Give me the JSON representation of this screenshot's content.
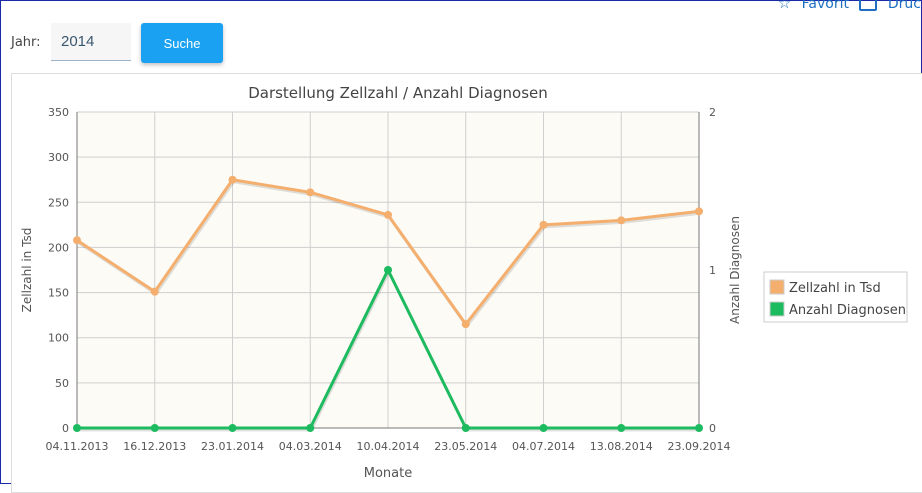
{
  "header": {
    "favorit_label": "Favorit",
    "druck_label": "Druc"
  },
  "filter": {
    "jahr_label": "Jahr:",
    "jahr_value": "2014",
    "suche_label": "Suche"
  },
  "colors": {
    "zellzahl": "#f4ae6d",
    "diagnosen": "#1dbb60",
    "plot_bg": "#fdfbf5",
    "button": "#1ba1f2"
  },
  "chart_data": {
    "type": "line",
    "title": "Darstellung Zellzahl / Anzahl Diagnosen",
    "xlabel": "Monate",
    "ylabel": "Zellzahl in Tsd",
    "y2label": "Anzahl Diagnosen",
    "categories": [
      "04.11.2013",
      "16.12.2013",
      "23.01.2014",
      "04.03.2014",
      "10.04.2014",
      "23.05.2014",
      "04.07.2014",
      "13.08.2014",
      "23.09.2014"
    ],
    "ylim": [
      0,
      350
    ],
    "yticks": [
      0,
      50,
      100,
      150,
      200,
      250,
      300,
      350
    ],
    "y2lim": [
      0,
      2
    ],
    "y2ticks": [
      0,
      1,
      2
    ],
    "grid": true,
    "legend_position": "right",
    "series": [
      {
        "name": "Zellzahl in Tsd",
        "axis": "left",
        "values": [
          208,
          151,
          275,
          261,
          236,
          115,
          225,
          230,
          240
        ]
      },
      {
        "name": "Anzahl Diagnosen",
        "axis": "right",
        "values": [
          0,
          0,
          0,
          0,
          1,
          0,
          0,
          0,
          0
        ]
      }
    ]
  }
}
